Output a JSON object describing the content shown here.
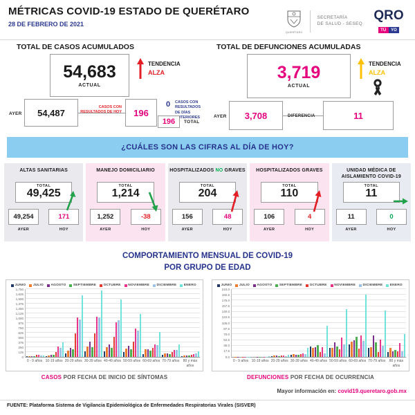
{
  "header": {
    "title": "MÉTRICAS COVID-19 ESTADO DE QUERÉTARO",
    "date": "28 DE FEBRERO DE 2021",
    "shield_caption": "QUERÉTARO",
    "ministry_line1": "SECRETARÍA",
    "ministry_line2": "DE SALUD - SESEQ",
    "brand": "QRO",
    "brand_tu": "TÚ",
    "brand_yo": "YO"
  },
  "cases_panel": {
    "title": "TOTAL DE CASOS ACUMULADOS",
    "actual_value": "54,683",
    "actual_label": "ACTUAL",
    "trend_label": "TENDENCIA",
    "trend_value": "ALZA",
    "ayer_label": "AYER",
    "ayer_value": "54,487",
    "today_results_label": "CASOS CON RESULTADOS DE HOY",
    "today_results_value": "196",
    "previous_results_value": "0",
    "previous_results_label": "CASOS CON RESULTADOS DE DÍAS ANTERIORES",
    "total_value": "196",
    "total_label": "TOTAL"
  },
  "deaths_panel": {
    "title": "TOTAL DE DEFUNCIONES ACUMULADAS",
    "actual_value": "3,719",
    "actual_label": "ACTUAL",
    "trend_label": "TENDENCIA",
    "trend_value": "ALZA",
    "ayer_label": "AYER",
    "ayer_value": "3,708",
    "diff_label": "DIFERENCIA",
    "diff_value": "11"
  },
  "banner": {
    "question": "¿CUÁLES SON LAS CIFRAS AL DÍA DE HOY?"
  },
  "cards": [
    {
      "title": "ALTAS SANITARIAS",
      "accent": "",
      "bg": "#e9e9ee",
      "total_label": "TOTAL",
      "total": "49,425",
      "ayer": "49,254",
      "hoy": "171",
      "ayer_label": "AYER",
      "hoy_label": "HOY",
      "hoy_color": "#e5007d",
      "arrow": "up-green"
    },
    {
      "title": "MANEJO DOMICILIARIO",
      "accent": "",
      "bg": "#fbe4ef",
      "total_label": "TOTAL",
      "total": "1,214",
      "ayer": "1,252",
      "hoy": "-38",
      "ayer_label": "AYER",
      "hoy_label": "HOY",
      "hoy_color": "#e31e24",
      "arrow": "down-green"
    },
    {
      "title": "HOSPITALIZADOS NO GRAVES",
      "accent": "NO",
      "bg": "#e9e9ee",
      "total_label": "TOTAL",
      "total": "204",
      "ayer": "156",
      "hoy": "48",
      "ayer_label": "AYER",
      "hoy_label": "HOY",
      "hoy_color": "#e5007d",
      "arrow": "up-red"
    },
    {
      "title": "HOSPITALIZADOS GRAVES",
      "accent": "",
      "bg": "#fbe4ef",
      "total_label": "TOTAL",
      "total": "110",
      "ayer": "106",
      "hoy": "4",
      "ayer_label": "AYER",
      "hoy_label": "HOY",
      "hoy_color": "#e31e24",
      "arrow": "up-red"
    },
    {
      "title": "UNIDAD MÉDICA DE AISLAMIENTO COVID-19",
      "accent": "",
      "bg": "#e8ebf2",
      "total_label": "TOTAL",
      "total": "11",
      "ayer": "11",
      "hoy": "0",
      "ayer_label": "AYER",
      "hoy_label": "HOY",
      "hoy_color": "#00a651",
      "arrow": "right-green"
    }
  ],
  "charts_section": {
    "title_line1": "COMPORTAMIENTO MENSUAL DE COVID-19",
    "title_line2": "POR GRUPO DE EDAD"
  },
  "chart_data": [
    {
      "type": "bar",
      "title": "CASOS POR FECHA DE INICIO DE SÍNTOMAS",
      "categories": [
        "0 - 9 años",
        "10-19 años",
        "20-29 años",
        "30-39 años",
        "40-49 años",
        "50-59 años",
        "60-69 años",
        "70-79 años",
        "80 y más años"
      ],
      "series": [
        {
          "name": "JUNIO",
          "color": "#1f3864",
          "values": [
            10,
            15,
            85,
            135,
            150,
            120,
            80,
            45,
            20
          ]
        },
        {
          "name": "JULIO",
          "color": "#ed7d31",
          "values": [
            20,
            40,
            160,
            260,
            250,
            210,
            190,
            95,
            35
          ]
        },
        {
          "name": "AGOSTO",
          "color": "#7b2d8b",
          "values": [
            25,
            55,
            235,
            390,
            330,
            280,
            200,
            90,
            40
          ]
        },
        {
          "name": "SEPTIEMBRE",
          "color": "#4caf50",
          "values": [
            20,
            45,
            200,
            255,
            230,
            195,
            160,
            75,
            35
          ]
        },
        {
          "name": "OCTUBRE",
          "color": "#e03c31",
          "values": [
            45,
            130,
            600,
            610,
            520,
            400,
            230,
            120,
            50
          ]
        },
        {
          "name": "NOVIEMBRE",
          "color": "#e8338c",
          "values": [
            55,
            265,
            1020,
            1040,
            900,
            740,
            330,
            170,
            80
          ]
        },
        {
          "name": "DICIEMBRE",
          "color": "#9dc3e6",
          "values": [
            40,
            225,
            970,
            1010,
            940,
            680,
            310,
            180,
            95
          ]
        },
        {
          "name": "ENERO",
          "color": "#6fe3db",
          "values": [
            30,
            380,
            1590,
            1720,
            1480,
            1100,
            650,
            330,
            150
          ]
        }
      ],
      "xlabel": "",
      "ylabel": "",
      "ylim": [
        0,
        1750
      ],
      "ytick_step": 125,
      "ytick_decimals": 0,
      "grid": true,
      "legend_position": "top"
    },
    {
      "type": "bar",
      "title": "DEFUNCIONES POR FECHA DE OCURRENCIA",
      "categories": [
        "0 - 9 años",
        "10-19 años",
        "20-29 años",
        "30-39 años",
        "40-49 años",
        "50-59 años",
        "60-69 años",
        "70-79 años",
        "80 y más años"
      ],
      "series": [
        {
          "name": "JUNIO",
          "color": "#1f3864",
          "values": [
            0,
            0,
            2,
            6,
            32,
            28,
            38,
            27,
            14
          ]
        },
        {
          "name": "JULIO",
          "color": "#ed7d31",
          "values": [
            1,
            0,
            5,
            8,
            27,
            28,
            47,
            29,
            27
          ]
        },
        {
          "name": "AGOSTO",
          "color": "#7b2d8b",
          "values": [
            1,
            1,
            5,
            7,
            29,
            46,
            52,
            67,
            17
          ]
        },
        {
          "name": "SEPTIEMBRE",
          "color": "#4caf50",
          "values": [
            0,
            1,
            3,
            7,
            36,
            32,
            62,
            46,
            22
          ]
        },
        {
          "name": "OCTUBRE",
          "color": "#e03c31",
          "values": [
            1,
            0,
            4,
            9,
            16,
            24,
            26,
            16,
            17
          ]
        },
        {
          "name": "NOVIEMBRE",
          "color": "#e8338c",
          "values": [
            1,
            1,
            4,
            10,
            29,
            60,
            66,
            54,
            43
          ]
        },
        {
          "name": "DICIEMBRE",
          "color": "#9dc3e6",
          "values": [
            1,
            1,
            3,
            8,
            11,
            38,
            50,
            35,
            18
          ]
        },
        {
          "name": "ENERO",
          "color": "#6fe3db",
          "values": [
            1,
            2,
            6,
            28,
            96,
            148,
            192,
            144,
            71
          ]
        }
      ],
      "xlabel": "",
      "ylabel": "",
      "ylim": [
        0,
        210
      ],
      "ytick_step": 17.5,
      "ytick_decimals": 1,
      "grid": true,
      "legend_position": "top"
    }
  ],
  "captions": {
    "left_accent": "CASOS",
    "left_rest": " POR FECHA DE INICIO DE SÍNTOMAS",
    "right_accent": "DEFUNCIONES",
    "right_rest": " POR FECHA DE OCURRENCIA"
  },
  "more_info": {
    "label": "Mayor información en:",
    "link": "covid19.queretaro.gob.mx"
  },
  "footer": {
    "source": "FUENTE: Plataforma Sistema  de Vigilancia Epidemiológica de Enfermedades Respiratorias Virales (SISVER)"
  }
}
